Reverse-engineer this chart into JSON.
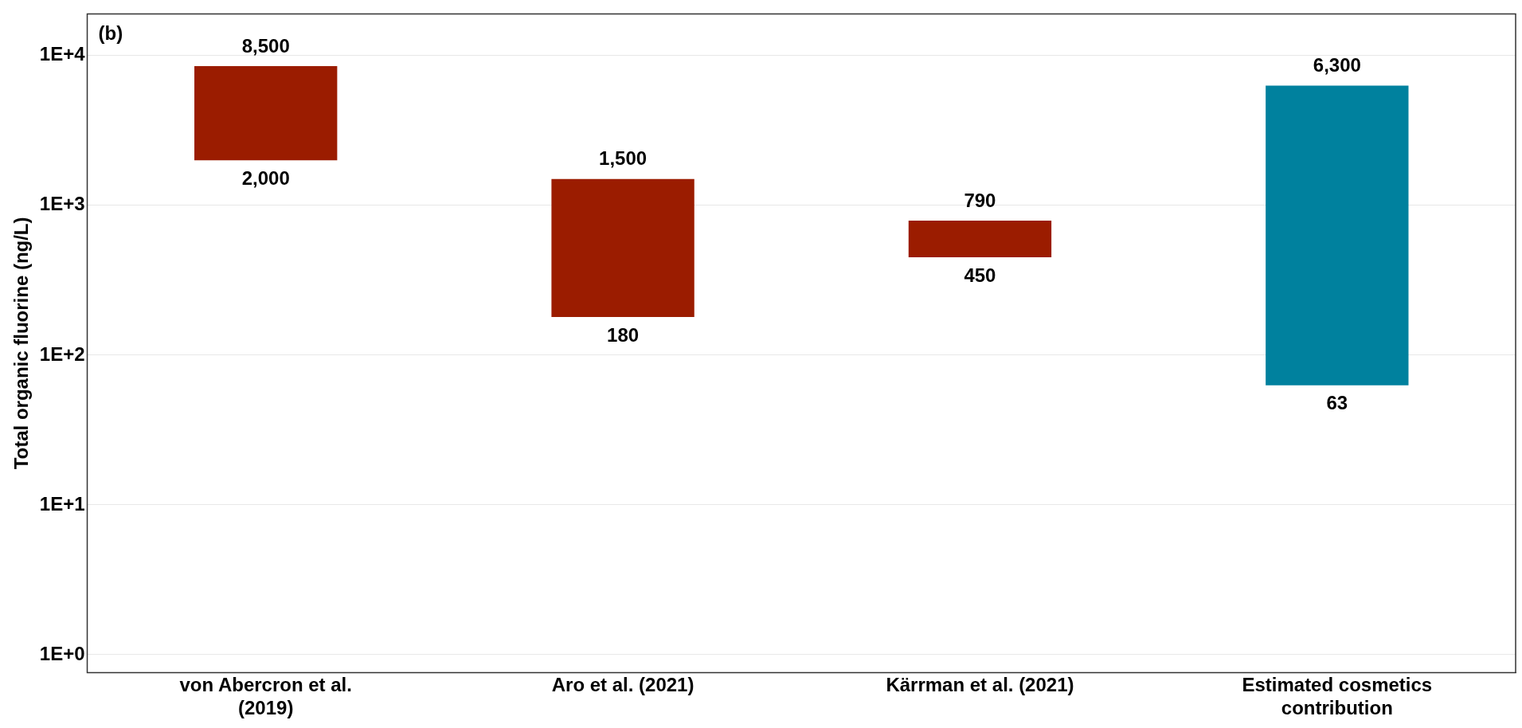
{
  "chart_data": {
    "type": "bar",
    "ylabel": "Total organic fluorine (ng/L)",
    "categories": [
      "von Abercron et al. (2019)",
      "Aro et al. (2021)",
      "Kärrman et al. (2021)",
      "Estimated cosmetics contribution"
    ],
    "base": [
      2000,
      180,
      450,
      63
    ],
    "values": [
      6500,
      1320,
      340,
      6237
    ],
    "colors": [
      "#9b1c00",
      "#9b1c00",
      "#9b1c00",
      "#00819e"
    ],
    "log": true,
    "ylim": [
      0.76,
      19000
    ],
    "yticks": [
      {
        "value": 1,
        "label": "1E+0"
      },
      {
        "value": 10,
        "label": "1E+1"
      },
      {
        "value": 100,
        "label": "1E+2"
      },
      {
        "value": 1000,
        "label": "1E+3"
      },
      {
        "value": 10000,
        "label": "1E+4"
      }
    ],
    "grid": "y",
    "annotations": [
      "(b)",
      {
        "text": "8,500",
        "x": "von Abercron et al. (2019)",
        "y": 8500
      },
      {
        "text": "2,000",
        "x": "von Abercron et al. (2019)",
        "y": 2000
      },
      {
        "text": "1,500",
        "x": "Aro et al. (2021)",
        "y": 1500
      },
      {
        "text": "180",
        "x": "Aro et al. (2021)",
        "y": 180
      },
      {
        "text": "790",
        "x": "Kärrman et al. (2021)",
        "y": 790
      },
      {
        "text": "450",
        "x": "Kärrman et al. (2021)",
        "y": 450
      },
      {
        "text": "6,300",
        "x": "Estimated cosmetics contribution",
        "y": 6300
      },
      {
        "text": "63",
        "x": "Estimated cosmetics contribution",
        "y": 63
      }
    ]
  }
}
